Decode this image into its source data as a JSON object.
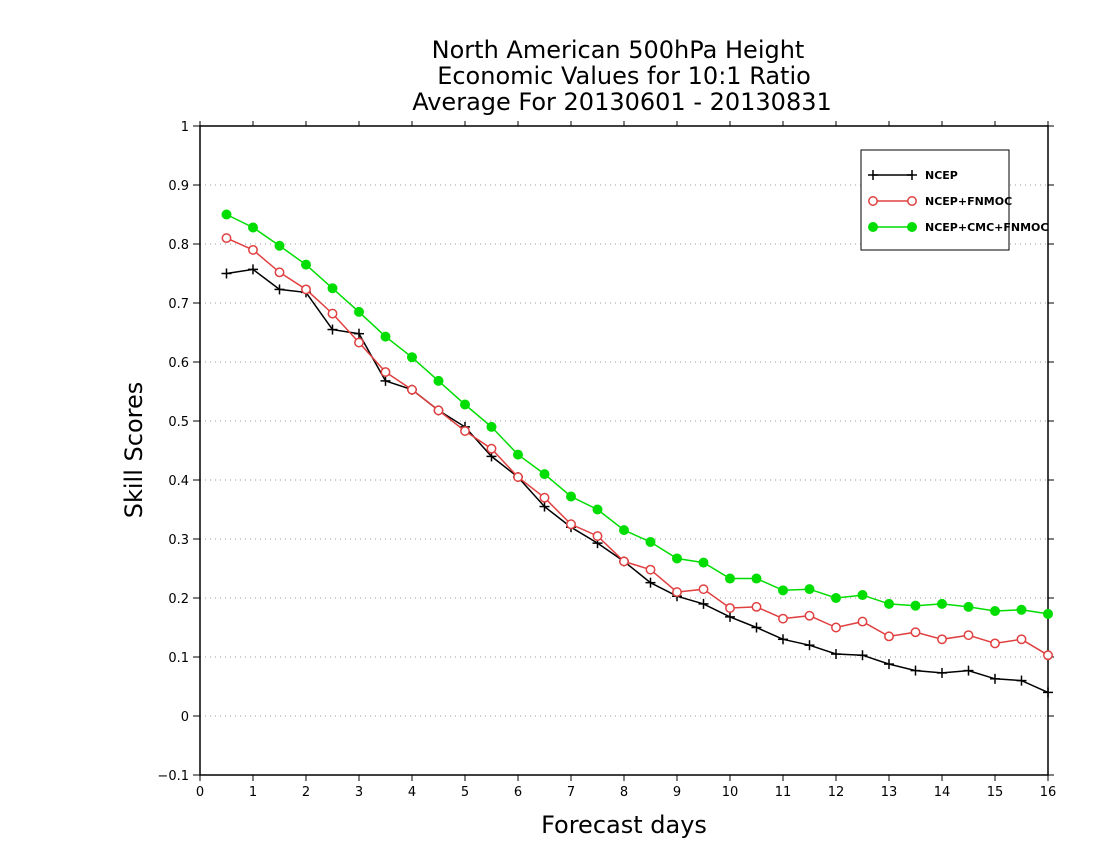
{
  "chart_data": {
    "type": "line",
    "title_lines": [
      "North American 500hPa Height",
      "Economic Values for 10:1 Ratio",
      "Average For 20130601 - 20130831"
    ],
    "xlabel": "Forecast days",
    "ylabel": "Skill Scores",
    "xlim": [
      0,
      16
    ],
    "ylim": [
      -0.1,
      1
    ],
    "x_ticks": [
      "0",
      "1",
      "2",
      "3",
      "4",
      "5",
      "6",
      "7",
      "8",
      "9",
      "10",
      "11",
      "12",
      "13",
      "14",
      "15",
      "16"
    ],
    "y_ticks": [
      "−0.1",
      "0",
      "0.1",
      "0.2",
      "0.3",
      "0.4",
      "0.5",
      "0.6",
      "0.7",
      "0.8",
      "0.9",
      "1"
    ],
    "grid": "horizontal dotted",
    "legend_position": "top-right",
    "x": [
      0.5,
      1,
      1.5,
      2,
      2.5,
      3,
      3.5,
      4,
      4.5,
      5,
      5.5,
      6,
      6.5,
      7,
      7.5,
      8,
      8.5,
      9,
      9.5,
      10,
      10.5,
      11,
      11.5,
      12,
      12.5,
      13,
      13.5,
      14,
      14.5,
      15,
      15.5,
      16
    ],
    "series": [
      {
        "name": "NCEP",
        "color": "#000000",
        "marker": "plus",
        "values": [
          0.75,
          0.757,
          0.723,
          0.718,
          0.655,
          0.648,
          0.568,
          0.553,
          0.518,
          0.49,
          0.44,
          0.405,
          0.355,
          0.32,
          0.293,
          0.262,
          0.226,
          0.203,
          0.19,
          0.168,
          0.15,
          0.13,
          0.12,
          0.105,
          0.103,
          0.088,
          0.077,
          0.073,
          0.077,
          0.063,
          0.06,
          0.04
        ]
      },
      {
        "name": "NCEP+FNMOC",
        "color": "#e04040",
        "marker": "open-circle",
        "values": [
          0.81,
          0.79,
          0.752,
          0.723,
          0.682,
          0.633,
          0.583,
          0.553,
          0.518,
          0.483,
          0.453,
          0.405,
          0.37,
          0.325,
          0.305,
          0.262,
          0.248,
          0.21,
          0.215,
          0.183,
          0.185,
          0.165,
          0.17,
          0.15,
          0.16,
          0.135,
          0.142,
          0.13,
          0.137,
          0.123,
          0.13,
          0.103
        ]
      },
      {
        "name": "NCEP+CMC+FNMOC",
        "color": "#00dd00",
        "marker": "filled-circle",
        "values": [
          0.85,
          0.828,
          0.797,
          0.765,
          0.725,
          0.685,
          0.643,
          0.608,
          0.568,
          0.528,
          0.49,
          0.443,
          0.41,
          0.372,
          0.35,
          0.315,
          0.295,
          0.267,
          0.26,
          0.233,
          0.233,
          0.213,
          0.215,
          0.2,
          0.205,
          0.19,
          0.187,
          0.19,
          0.185,
          0.178,
          0.18,
          0.173
        ]
      }
    ]
  }
}
